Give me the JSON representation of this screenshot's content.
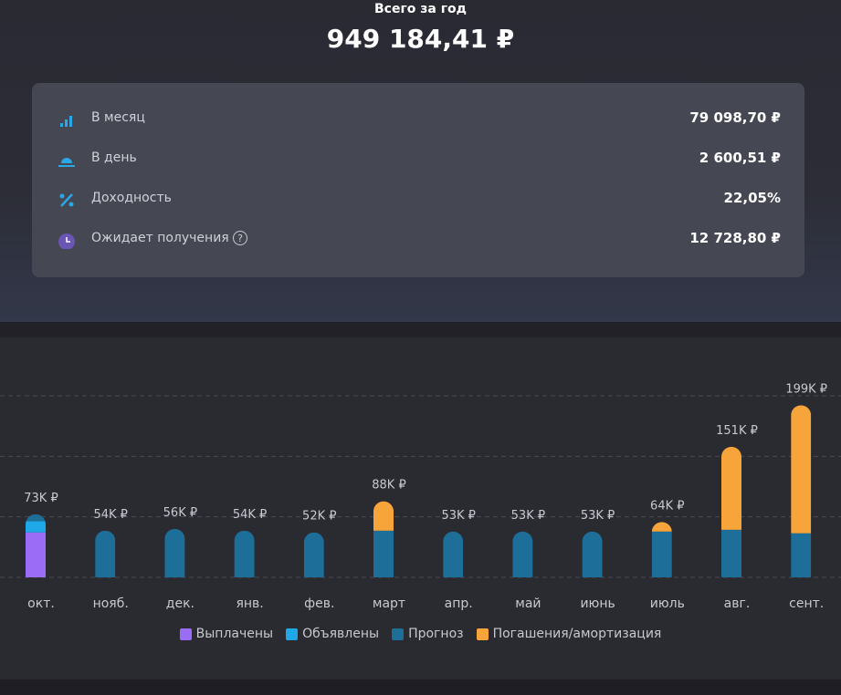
{
  "header": {
    "title": "Всего за год",
    "total": "949 184,41 ₽"
  },
  "stats": [
    {
      "label": "В месяц",
      "value": "79 098,70 ₽"
    },
    {
      "label": "В день",
      "value": "2 600,51 ₽"
    },
    {
      "label": "Доходность",
      "value": "22,05%"
    },
    {
      "label": "Ожидает получения",
      "value": "12 728,80 ₽"
    }
  ],
  "chart_data": {
    "type": "stacked-bar",
    "categories": [
      "окт.",
      "нояб.",
      "дек.",
      "янв.",
      "фев.",
      "март",
      "апр.",
      "май",
      "июнь",
      "июль",
      "авг.",
      "сент."
    ],
    "series": [
      {
        "name": "Выплачены",
        "color": "#9b6cf5",
        "values": [
          52000,
          0,
          0,
          0,
          0,
          0,
          0,
          0,
          0,
          0,
          0,
          0
        ]
      },
      {
        "name": "Объявлены",
        "color": "#1ea8e8",
        "values": [
          13000,
          0,
          0,
          0,
          0,
          0,
          0,
          0,
          0,
          0,
          0,
          0
        ]
      },
      {
        "name": "Прогноз",
        "color": "#1d6f99",
        "values": [
          8000,
          54000,
          56000,
          54000,
          52000,
          54000,
          53000,
          53000,
          53000,
          53000,
          55000,
          51000
        ]
      },
      {
        "name": "Погашения/амортизация",
        "color": "#f7a53b",
        "values": [
          0,
          0,
          0,
          0,
          0,
          34000,
          0,
          0,
          0,
          11000,
          96000,
          148000
        ]
      }
    ],
    "total_labels": [
      "73K ₽",
      "54K ₽",
      "56K ₽",
      "54K ₽",
      "52K ₽",
      "88K ₽",
      "53K ₽",
      "53K ₽",
      "53K ₽",
      "64K ₽",
      "151K ₽",
      "199K ₽"
    ],
    "ylim": [
      0,
      210000
    ],
    "yticks": [
      0,
      70000,
      140000,
      210000
    ],
    "grid": true
  }
}
